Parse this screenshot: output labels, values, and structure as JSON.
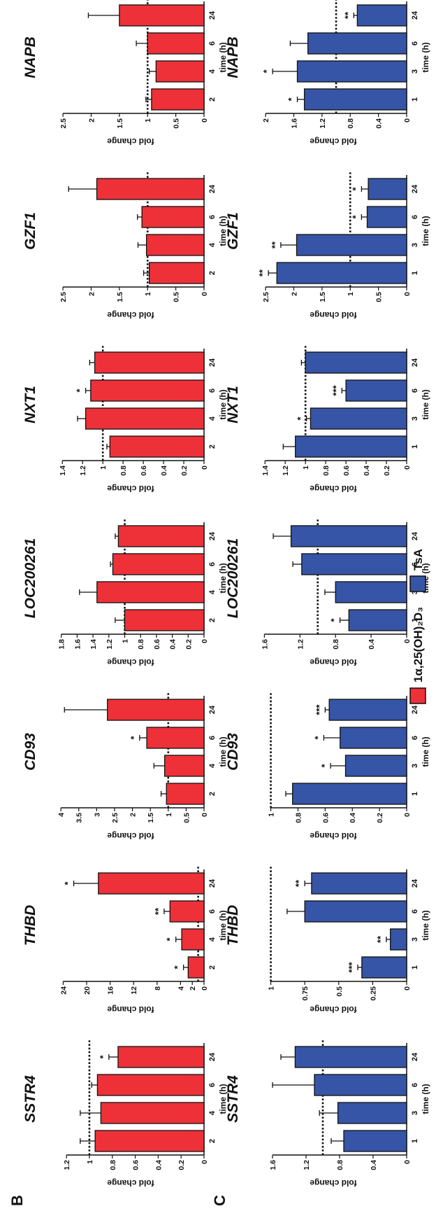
{
  "figure": {
    "panel_b_label": "B",
    "panel_c_label": "C",
    "legend": [
      {
        "label": "1α,25(OH)₂D₃",
        "color": "#ee3138"
      },
      {
        "label": "TsA",
        "color": "#3755a6"
      }
    ]
  },
  "chart_data": [
    {
      "type": "bar",
      "panel": "B",
      "gene": "SSTR4",
      "categories": [
        "2",
        "4",
        "6",
        "24"
      ],
      "values": [
        0.95,
        0.9,
        0.93,
        0.75
      ],
      "errors": [
        0.13,
        0.18,
        0.05,
        0.08
      ],
      "sig": [
        "",
        "",
        "",
        "*"
      ],
      "ticks": [
        0,
        0.2,
        0.4,
        0.6,
        0.8,
        1,
        1.2
      ],
      "ylim": [
        0,
        1.28
      ],
      "ref": 1,
      "xlabel": "time (h)",
      "ylabel": "fold change",
      "color": "#ee3138"
    },
    {
      "type": "bar",
      "panel": "B",
      "gene": "THBD",
      "categories": [
        "2",
        "4",
        "6",
        "24"
      ],
      "values": [
        2.7,
        3.8,
        5.8,
        18
      ],
      "errors": [
        0.8,
        1.0,
        1.0,
        4.2
      ],
      "sig": [
        "*",
        "*",
        "**",
        "*"
      ],
      "ticks": [
        0,
        2,
        4,
        8,
        12,
        16,
        20,
        24
      ],
      "tick_labels": [
        "0",
        "2",
        "4",
        "8",
        "12",
        "16",
        "20",
        "24"
      ],
      "ylim": [
        0,
        25
      ],
      "ref": 1,
      "xlabel": "time (h)",
      "ylabel": "fold change",
      "color": "#ee3138"
    },
    {
      "type": "bar",
      "panel": "B",
      "gene": "CD93",
      "categories": [
        "2",
        "4",
        "6",
        "24"
      ],
      "values": [
        1.05,
        1.1,
        1.6,
        2.7
      ],
      "errors": [
        0.15,
        0.3,
        0.2,
        1.2
      ],
      "sig": [
        "",
        "",
        "*",
        ""
      ],
      "ticks": [
        0,
        0.5,
        1,
        1.5,
        2,
        2.5,
        3,
        3.5,
        4
      ],
      "ylim": [
        0,
        4.1
      ],
      "ref": 1,
      "xlabel": "time (h)",
      "ylabel": "fold change",
      "color": "#ee3138"
    },
    {
      "type": "bar",
      "panel": "B",
      "gene": "LOC200261",
      "categories": [
        "2",
        "4",
        "6",
        "24"
      ],
      "values": [
        1.0,
        1.35,
        1.15,
        1.08
      ],
      "errors": [
        0.12,
        0.22,
        0.03,
        0.04
      ],
      "sig": [
        "",
        "",
        "",
        ""
      ],
      "ticks": [
        0,
        0.2,
        0.4,
        0.6,
        0.8,
        1,
        1.2,
        1.4,
        1.6,
        1.8
      ],
      "ylim": [
        0,
        1.85
      ],
      "ref": 1,
      "xlabel": "time (h)",
      "ylabel": "fold change",
      "color": "#ee3138"
    },
    {
      "type": "bar",
      "panel": "B",
      "gene": "NXT1",
      "categories": [
        "2",
        "4",
        "6",
        "24"
      ],
      "values": [
        0.93,
        1.17,
        1.12,
        1.08
      ],
      "errors": [
        0.03,
        0.08,
        0.05,
        0.05
      ],
      "sig": [
        "",
        "",
        "*",
        ""
      ],
      "ticks": [
        0,
        0.2,
        0.4,
        0.6,
        0.8,
        1,
        1.2,
        1.4
      ],
      "ylim": [
        0,
        1.45
      ],
      "ref": 1,
      "xlabel": "time (h)",
      "ylabel": "fold change",
      "color": "#ee3138"
    },
    {
      "type": "bar",
      "panel": "B",
      "gene": "GZF1",
      "categories": [
        "2",
        "4",
        "6",
        "24"
      ],
      "values": [
        0.97,
        1.02,
        1.1,
        1.9
      ],
      "errors": [
        0.1,
        0.15,
        0.08,
        0.5
      ],
      "sig": [
        "",
        "",
        "",
        ""
      ],
      "ticks": [
        0,
        0.5,
        1,
        1.5,
        2,
        2.5
      ],
      "ylim": [
        0,
        2.6
      ],
      "ref": 1,
      "xlabel": "time (h)",
      "ylabel": "fold change",
      "color": "#ee3138"
    },
    {
      "type": "bar",
      "panel": "B",
      "gene": "NAPB",
      "categories": [
        "2",
        "4",
        "6",
        "24"
      ],
      "values": [
        0.93,
        0.85,
        1.0,
        1.5
      ],
      "errors": [
        0.1,
        0.12,
        0.2,
        0.55
      ],
      "sig": [
        "",
        "",
        "",
        ""
      ],
      "ticks": [
        0,
        0.5,
        1,
        1.5,
        2,
        2.5
      ],
      "ylim": [
        0,
        2.6
      ],
      "ref": 1,
      "xlabel": "time (h)",
      "ylabel": "fold change",
      "color": "#ee3138"
    },
    {
      "type": "bar",
      "panel": "C",
      "gene": "SSTR4",
      "categories": [
        "1",
        "3",
        "6",
        "24"
      ],
      "values": [
        0.75,
        0.82,
        1.1,
        1.33
      ],
      "errors": [
        0.15,
        0.22,
        0.5,
        0.17
      ],
      "sig": [
        "",
        "",
        "",
        ""
      ],
      "ticks": [
        0,
        0.4,
        0.8,
        1.2,
        1.6
      ],
      "ylim": [
        0,
        1.75
      ],
      "ref": 1,
      "xlabel": "time (h)",
      "ylabel": "fold change",
      "color": "#3755a6"
    },
    {
      "type": "bar",
      "panel": "C",
      "gene": "THBD",
      "categories": [
        "1",
        "3",
        "6",
        "24"
      ],
      "values": [
        0.33,
        0.12,
        0.75,
        0.7
      ],
      "errors": [
        0.03,
        0.03,
        0.13,
        0.05
      ],
      "sig": [
        "***",
        "**",
        "",
        "**"
      ],
      "ticks": [
        0,
        0.25,
        0.5,
        0.75,
        1
      ],
      "ylim": [
        0,
        1.08
      ],
      "ref": 1,
      "xlabel": "time (h)",
      "ylabel": "fold change",
      "color": "#3755a6"
    },
    {
      "type": "bar",
      "panel": "C",
      "gene": "CD93",
      "categories": [
        "1",
        "3",
        "6",
        "24"
      ],
      "values": [
        0.84,
        0.45,
        0.49,
        0.57
      ],
      "errors": [
        0.05,
        0.11,
        0.12,
        0.03
      ],
      "sig": [
        "",
        "*",
        "*",
        "***"
      ],
      "ticks": [
        0,
        0.2,
        0.4,
        0.6,
        0.8,
        1
      ],
      "ylim": [
        0,
        1.08
      ],
      "ref": 1,
      "xlabel": "time (h)",
      "ylabel": "fold change",
      "color": "#3755a6"
    },
    {
      "type": "bar",
      "panel": "C",
      "gene": "LOC200261",
      "categories": [
        "1",
        "3",
        "6",
        "24"
      ],
      "values": [
        0.65,
        0.8,
        1.18,
        1.3
      ],
      "errors": [
        0.1,
        0.12,
        0.1,
        0.2
      ],
      "sig": [
        "*",
        "",
        "",
        ""
      ],
      "ticks": [
        0,
        0.4,
        0.8,
        1.2,
        1.6
      ],
      "ylim": [
        0,
        1.65
      ],
      "ref": 1,
      "xlabel": "time (h)",
      "ylabel": "fold change",
      "color": "#3755a6"
    },
    {
      "type": "bar",
      "panel": "C",
      "gene": "NXT1",
      "categories": [
        "1",
        "3",
        "6",
        "24"
      ],
      "values": [
        1.1,
        0.95,
        0.6,
        1.0
      ],
      "errors": [
        0.12,
        0.04,
        0.04,
        0.04
      ],
      "sig": [
        "",
        "*",
        "***",
        ""
      ],
      "ticks": [
        0,
        0.2,
        0.4,
        0.6,
        0.8,
        1,
        1.2,
        1.4
      ],
      "ylim": [
        0,
        1.45
      ],
      "ref": 1,
      "xlabel": "time (h)",
      "ylabel": "fold change",
      "color": "#3755a6"
    },
    {
      "type": "bar",
      "panel": "C",
      "gene": "GZF1",
      "categories": [
        "1",
        "3",
        "6",
        "24"
      ],
      "values": [
        2.3,
        1.95,
        0.7,
        0.68
      ],
      "errors": [
        0.15,
        0.28,
        0.1,
        0.12
      ],
      "sig": [
        "**",
        "**",
        "*",
        "*"
      ],
      "ticks": [
        0,
        0.5,
        1,
        1.5,
        2,
        2.5
      ],
      "ylim": [
        0,
        2.6
      ],
      "ref": 1,
      "xlabel": "time (h)",
      "ylabel": "fold change",
      "color": "#3755a6"
    },
    {
      "type": "bar",
      "panel": "C",
      "gene": "NAPB",
      "categories": [
        "1",
        "3",
        "6",
        "24"
      ],
      "values": [
        1.45,
        1.55,
        1.4,
        0.7
      ],
      "errors": [
        0.1,
        0.35,
        0.25,
        0.05
      ],
      "sig": [
        "*",
        "*",
        "",
        "**"
      ],
      "ticks": [
        0,
        0.4,
        0.8,
        1.2,
        1.6,
        2
      ],
      "ylim": [
        0,
        2.08
      ],
      "ref": 1,
      "xlabel": "time (h)",
      "ylabel": "fold change",
      "color": "#3755a6"
    }
  ]
}
